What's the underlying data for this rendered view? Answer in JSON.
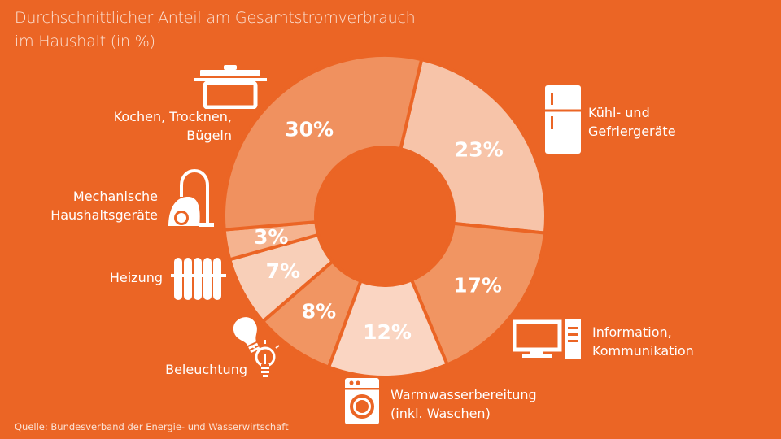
{
  "header": {
    "title_line1": "Durchschnittlicher Anteil am Gesamtstromverbrauch",
    "title_line2": "im Haushalt (in %)"
  },
  "footer": {
    "source": "Quelle: Bundesverband der Energie- und Wasserwirtschaft"
  },
  "colors": {
    "background": "#EB6525",
    "text": "#ffffff"
  },
  "chart_data": {
    "type": "pie",
    "title": "Durchschnittlicher Anteil am Gesamtstromverbrauch im Haushalt (in %)",
    "unit": "%",
    "categories": [
      "Kühl- und Gefriergeräte",
      "Information, Kommunikation",
      "Warmwasserbereitung (inkl. Waschen)",
      "Beleuchtung",
      "Heizung",
      "Mechanische Haushaltsgeräte",
      "Kochen, Trocknen, Bügeln"
    ],
    "values": [
      23,
      17,
      12,
      8,
      7,
      3,
      30
    ],
    "value_labels": [
      "23%",
      "17%",
      "12%",
      "8%",
      "7%",
      "3%",
      "30%"
    ],
    "slice_colors": [
      "#F7C4A9",
      "#F19562",
      "#FAD5C2",
      "#F19562",
      "#F8CFB8",
      "#F5B38F",
      "#F0915F"
    ],
    "labels": {
      "kuehl": [
        "Kühl- und",
        "Gefriergeräte"
      ],
      "info": [
        "Information,",
        "Kommunikation"
      ],
      "warm": [
        "Warmwasserbereitung",
        "(inkl. Waschen)"
      ],
      "licht": [
        "Beleuchtung"
      ],
      "heiz": [
        "Heizung"
      ],
      "mech": [
        "Mechanische",
        "Haushaltsgeräte"
      ],
      "koch": [
        "Kochen, Trocknen,",
        "Bügeln"
      ]
    },
    "icons": [
      "fridge-icon",
      "computer-icon",
      "washing-machine-icon",
      "light-bulbs-icon",
      "radiator-icon",
      "vacuum-cleaner-icon",
      "cooking-pot-icon"
    ]
  }
}
